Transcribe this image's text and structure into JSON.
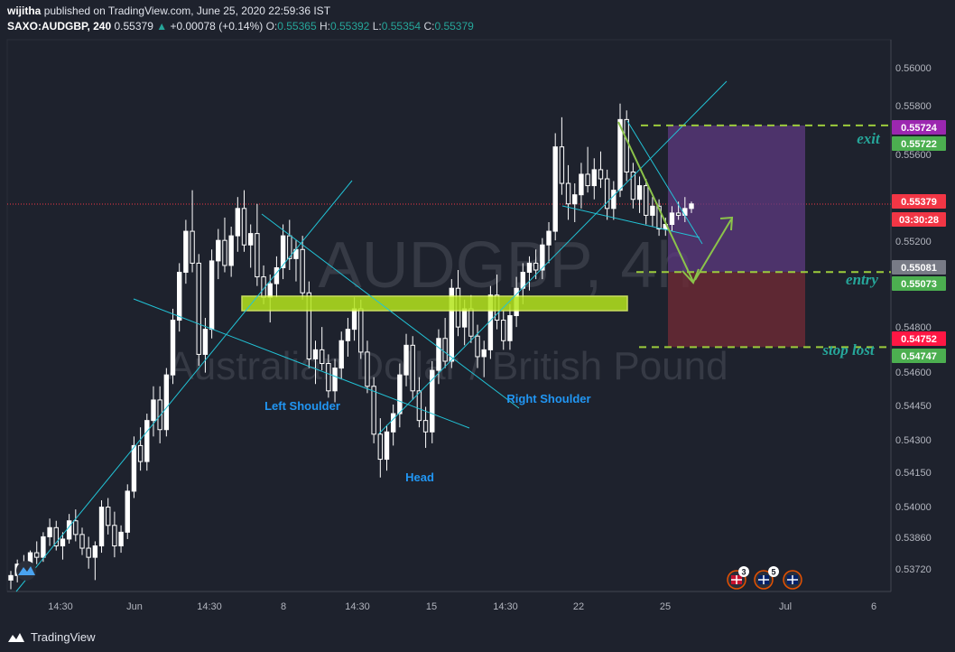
{
  "header": {
    "user": "wijitha",
    "published": "published on TradingView.com, June 25, 2020 22:59:36 IST",
    "symbol": "SAXO:AUDGBP, 240",
    "last": "0.55379",
    "change": "+0.00078 (+0.14%)",
    "o_label": "O:",
    "o": "0.55365",
    "h_label": "H:",
    "h": "0.55392",
    "l_label": "L:",
    "l": "0.55354",
    "c_label": "C:",
    "c": "0.55379"
  },
  "watermark": {
    "symbol": "AUDGBP, 4h",
    "name": "Australian Dollar / British Pound"
  },
  "colors": {
    "background": "#1e222d",
    "candle": "#ffffff",
    "trendline": "#22c3d6",
    "zone_fill": "#b5e61d",
    "dashed_level": "#9ccc3c",
    "arrow": "#8bc34a",
    "profit_box": "#5d3a80",
    "loss_box": "#6e2a35",
    "annotation": "#26a69a",
    "pattern_label": "#2196f3"
  },
  "footer": {
    "brand": "TradingView"
  },
  "chart_data": {
    "type": "candlestick",
    "timeframe": "4h",
    "y_axis_labels": [
      "0.56000",
      "0.55800",
      "0.55600",
      "0.55200",
      "0.54800",
      "0.54600",
      "0.54450",
      "0.54300",
      "0.54150",
      "0.54000",
      "0.53860",
      "0.53720"
    ],
    "x_axis_labels": [
      "14:30",
      "Jun",
      "14:30",
      "8",
      "14:30",
      "15",
      "14:30",
      "22",
      "25",
      "Jul",
      "6"
    ],
    "price_tags": [
      {
        "value": "0.55724",
        "color": "#9c27b0"
      },
      {
        "value": "0.55722",
        "color": "#4caf50"
      },
      {
        "value": "0.55379",
        "color": "#f23645"
      },
      {
        "value": "03:30:28",
        "color": "#f23645"
      },
      {
        "value": "0.55081",
        "color": "#787b86"
      },
      {
        "value": "0.55073",
        "color": "#4caf50"
      },
      {
        "value": "0.54752",
        "color": "#ff1744"
      },
      {
        "value": "0.54747",
        "color": "#4caf50"
      }
    ],
    "annotations": [
      {
        "text": "exit"
      },
      {
        "text": "entry"
      },
      {
        "text": "stop lost"
      },
      {
        "text": "Left Shoulder"
      },
      {
        "text": "Head"
      },
      {
        "text": "Right Shoulder"
      }
    ],
    "levels": {
      "exit": 0.55724,
      "entry": 0.55081,
      "stop": 0.54752,
      "last": 0.55379
    },
    "event_badges": [
      "3",
      "5"
    ],
    "candles": [
      [
        0.5373,
        0.5377,
        0.5369,
        0.5375
      ],
      [
        0.5375,
        0.5382,
        0.5372,
        0.538
      ],
      [
        0.538,
        0.5384,
        0.5376,
        0.5378
      ],
      [
        0.5378,
        0.5386,
        0.5377,
        0.5385
      ],
      [
        0.5385,
        0.539,
        0.538,
        0.5383
      ],
      [
        0.5383,
        0.5394,
        0.5381,
        0.5392
      ],
      [
        0.5392,
        0.54,
        0.5388,
        0.5396
      ],
      [
        0.5396,
        0.5399,
        0.5386,
        0.5388
      ],
      [
        0.5388,
        0.5394,
        0.5382,
        0.5391
      ],
      [
        0.5391,
        0.5402,
        0.5389,
        0.5399
      ],
      [
        0.5399,
        0.5404,
        0.539,
        0.5393
      ],
      [
        0.5393,
        0.5396,
        0.5384,
        0.5387
      ],
      [
        0.5387,
        0.5392,
        0.5378,
        0.5383
      ],
      [
        0.5383,
        0.539,
        0.5373,
        0.5388
      ],
      [
        0.5388,
        0.5408,
        0.5385,
        0.5405
      ],
      [
        0.5405,
        0.5409,
        0.5393,
        0.5397
      ],
      [
        0.5397,
        0.5403,
        0.5383,
        0.5388
      ],
      [
        0.5388,
        0.5397,
        0.5385,
        0.5394
      ],
      [
        0.5394,
        0.5415,
        0.5391,
        0.5412
      ],
      [
        0.5412,
        0.5436,
        0.5409,
        0.5432
      ],
      [
        0.5432,
        0.544,
        0.5421,
        0.5425
      ],
      [
        0.5425,
        0.5446,
        0.5421,
        0.5443
      ],
      [
        0.5443,
        0.5458,
        0.5436,
        0.5452
      ],
      [
        0.5452,
        0.5458,
        0.5433,
        0.5439
      ],
      [
        0.5439,
        0.5466,
        0.5436,
        0.5463
      ],
      [
        0.5463,
        0.5492,
        0.5459,
        0.5487
      ],
      [
        0.5487,
        0.5512,
        0.5482,
        0.5508
      ],
      [
        0.5508,
        0.5531,
        0.5503,
        0.5526
      ],
      [
        0.5526,
        0.5544,
        0.5508,
        0.5512
      ],
      [
        0.5512,
        0.5516,
        0.5467,
        0.5472
      ],
      [
        0.5472,
        0.5488,
        0.5464,
        0.5483
      ],
      [
        0.5483,
        0.5518,
        0.5479,
        0.5513
      ],
      [
        0.5513,
        0.5527,
        0.5505,
        0.5522
      ],
      [
        0.5522,
        0.5532,
        0.5508,
        0.5511
      ],
      [
        0.5511,
        0.5528,
        0.5506,
        0.5524
      ],
      [
        0.5524,
        0.5541,
        0.5517,
        0.5536
      ],
      [
        0.5536,
        0.5544,
        0.5517,
        0.552
      ],
      [
        0.552,
        0.5529,
        0.551,
        0.5525
      ],
      [
        0.5525,
        0.5538,
        0.5502,
        0.5506
      ],
      [
        0.5506,
        0.5511,
        0.5494,
        0.5497
      ],
      [
        0.5497,
        0.5507,
        0.5486,
        0.5503
      ],
      [
        0.5503,
        0.5515,
        0.5497,
        0.551
      ],
      [
        0.551,
        0.5529,
        0.5505,
        0.5524
      ],
      [
        0.5524,
        0.5531,
        0.5509,
        0.5514
      ],
      [
        0.5514,
        0.5522,
        0.5504,
        0.5518
      ],
      [
        0.5518,
        0.5524,
        0.5496,
        0.5499
      ],
      [
        0.5499,
        0.5504,
        0.5466,
        0.547
      ],
      [
        0.547,
        0.5478,
        0.5459,
        0.5474
      ],
      [
        0.5474,
        0.5484,
        0.5465,
        0.5468
      ],
      [
        0.5468,
        0.5472,
        0.5453,
        0.5456
      ],
      [
        0.5456,
        0.547,
        0.5451,
        0.5466
      ],
      [
        0.5466,
        0.5482,
        0.5461,
        0.5478
      ],
      [
        0.5478,
        0.5488,
        0.5471,
        0.5483
      ],
      [
        0.5483,
        0.5497,
        0.5478,
        0.5492
      ],
      [
        0.5492,
        0.5496,
        0.547,
        0.5473
      ],
      [
        0.5473,
        0.5478,
        0.5455,
        0.5458
      ],
      [
        0.5458,
        0.5462,
        0.5433,
        0.5437
      ],
      [
        0.5437,
        0.5444,
        0.5418,
        0.5426
      ],
      [
        0.5426,
        0.5441,
        0.5421,
        0.5438
      ],
      [
        0.5438,
        0.545,
        0.5432,
        0.5446
      ],
      [
        0.5446,
        0.5468,
        0.544,
        0.5463
      ],
      [
        0.5463,
        0.5481,
        0.5458,
        0.5476
      ],
      [
        0.5476,
        0.548,
        0.5452,
        0.5456
      ],
      [
        0.5456,
        0.5462,
        0.544,
        0.5443
      ],
      [
        0.5443,
        0.5449,
        0.5431,
        0.5438
      ],
      [
        0.5438,
        0.5469,
        0.5433,
        0.5465
      ],
      [
        0.5465,
        0.5483,
        0.5459,
        0.5479
      ],
      [
        0.5479,
        0.5488,
        0.5466,
        0.5469
      ],
      [
        0.5469,
        0.5505,
        0.5466,
        0.5501
      ],
      [
        0.5501,
        0.5509,
        0.548,
        0.5484
      ],
      [
        0.5484,
        0.5496,
        0.5476,
        0.5492
      ],
      [
        0.5492,
        0.5498,
        0.5477,
        0.548
      ],
      [
        0.548,
        0.5485,
        0.5466,
        0.5471
      ],
      [
        0.5471,
        0.5478,
        0.5462,
        0.5474
      ],
      [
        0.5474,
        0.5502,
        0.547,
        0.5498
      ],
      [
        0.5498,
        0.5507,
        0.5483,
        0.5487
      ],
      [
        0.5487,
        0.5491,
        0.5474,
        0.5478
      ],
      [
        0.5478,
        0.5494,
        0.5474,
        0.5489
      ],
      [
        0.5489,
        0.5506,
        0.5484,
        0.5501
      ],
      [
        0.5501,
        0.5512,
        0.5494,
        0.5508
      ],
      [
        0.5508,
        0.5515,
        0.55,
        0.5512
      ],
      [
        0.5512,
        0.5518,
        0.5505,
        0.5509
      ],
      [
        0.5509,
        0.5523,
        0.5505,
        0.552
      ],
      [
        0.552,
        0.553,
        0.5512,
        0.5526
      ],
      [
        0.5526,
        0.5569,
        0.5522,
        0.5563
      ],
      [
        0.5563,
        0.5576,
        0.5542,
        0.5547
      ],
      [
        0.5547,
        0.5555,
        0.5531,
        0.5538
      ],
      [
        0.5538,
        0.5547,
        0.553,
        0.5542
      ],
      [
        0.5542,
        0.5556,
        0.5536,
        0.5551
      ],
      [
        0.5551,
        0.5563,
        0.5543,
        0.5546
      ],
      [
        0.5546,
        0.5558,
        0.554,
        0.5553
      ],
      [
        0.5553,
        0.5561,
        0.5545,
        0.5549
      ],
      [
        0.5549,
        0.5553,
        0.5531,
        0.5536
      ],
      [
        0.5536,
        0.5548,
        0.5531,
        0.5544
      ],
      [
        0.5544,
        0.5582,
        0.5541,
        0.5575
      ],
      [
        0.5575,
        0.5579,
        0.5548,
        0.5552
      ],
      [
        0.5552,
        0.5556,
        0.5536,
        0.554
      ],
      [
        0.554,
        0.555,
        0.5534,
        0.5546
      ],
      [
        0.5546,
        0.5549,
        0.5529,
        0.5533
      ],
      [
        0.5533,
        0.5541,
        0.5528,
        0.5537
      ],
      [
        0.5537,
        0.554,
        0.5524,
        0.5527
      ],
      [
        0.5527,
        0.5532,
        0.5524,
        0.5529
      ],
      [
        0.5529,
        0.5537,
        0.5526,
        0.5534
      ],
      [
        0.5534,
        0.5539,
        0.5531,
        0.5533
      ],
      [
        0.5533,
        0.5541,
        0.553,
        0.5536
      ],
      [
        0.5536,
        0.5539,
        0.5534,
        0.5538
      ]
    ]
  }
}
